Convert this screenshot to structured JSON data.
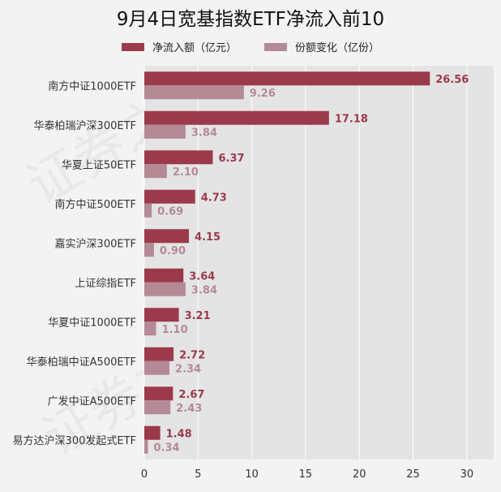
{
  "title": "9月4日宽基指数ETF净流入前10",
  "watermark": "证券之星",
  "colors": {
    "background": "#f3f3f3",
    "plot_bg": "#e4e4e4",
    "grid": "#ffffff",
    "net_inflow": "#9b3a4b",
    "share_change": "#b48a96",
    "net_inflow_label": "#9b3a4b",
    "share_change_label": "#b48a96"
  },
  "chart_data": {
    "type": "bar",
    "orientation": "horizontal",
    "title": "9月4日宽基指数ETF净流入前10",
    "categories": [
      "南方中证1000ETF",
      "华泰柏瑞沪深300ETF",
      "华夏上证50ETF",
      "南方中证500ETF",
      "嘉实沪深300ETF",
      "上证综指ETF",
      "华夏中证1000ETF",
      "华泰柏瑞中证A500ETF",
      "广发中证A500ETF",
      "易方达沪深300发起式ETF"
    ],
    "series": [
      {
        "name": "净流入额（亿元）",
        "values": [
          26.56,
          17.18,
          6.37,
          4.73,
          4.15,
          3.64,
          3.21,
          2.72,
          2.67,
          1.48
        ],
        "labels": [
          "26.56",
          "17.18",
          "6.37",
          "4.73",
          "4.15",
          "3.64",
          "3.21",
          "2.72",
          "2.67",
          "1.48"
        ]
      },
      {
        "name": "份额变化（亿份）",
        "values": [
          9.26,
          3.84,
          2.1,
          0.69,
          0.9,
          3.84,
          1.1,
          2.34,
          2.43,
          0.34
        ],
        "labels": [
          "9.26",
          "3.84",
          "2.10",
          "0.69",
          "0.90",
          "3.84",
          "1.10",
          "2.34",
          "2.43",
          "0.34"
        ]
      }
    ],
    "xlim": [
      0,
      32.5
    ],
    "xticks": [
      0,
      5,
      10,
      15,
      20,
      25,
      30
    ],
    "xtick_labels": [
      "0",
      "5",
      "10",
      "15",
      "20",
      "25",
      "30"
    ],
    "grid": true,
    "legend_position": "top"
  }
}
